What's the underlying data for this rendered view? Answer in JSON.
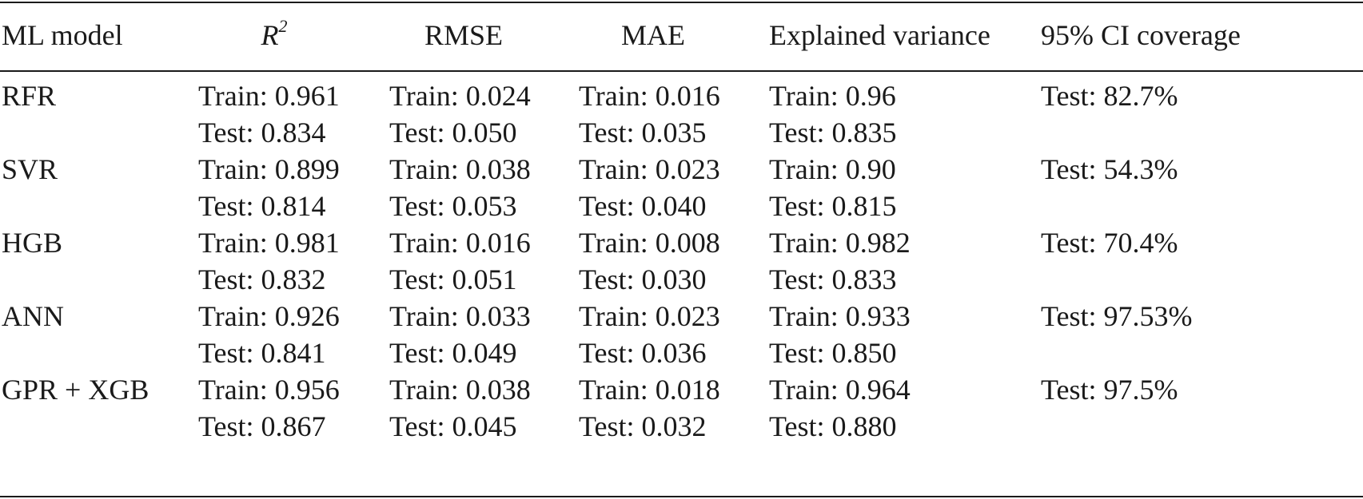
{
  "table": {
    "headers": {
      "model": "ML model",
      "r2_base": "R",
      "r2_exp": "2",
      "rmse": "RMSE",
      "mae": "MAE",
      "explained_variance": "Explained variance",
      "ci_coverage": "95% CI coverage"
    },
    "rows": [
      {
        "model": "RFR",
        "r2": {
          "train": "Train: 0.961",
          "test": "Test: 0.834"
        },
        "rmse": {
          "train": "Train: 0.024",
          "test": "Test: 0.050"
        },
        "mae": {
          "train": "Train: 0.016",
          "test": "Test: 0.035"
        },
        "ev": {
          "train": "Train: 0.96",
          "test": "Test: 0.835"
        },
        "ci": "Test: 82.7%"
      },
      {
        "model": "SVR",
        "r2": {
          "train": "Train: 0.899",
          "test": "Test: 0.814"
        },
        "rmse": {
          "train": "Train: 0.038",
          "test": "Test: 0.053"
        },
        "mae": {
          "train": "Train: 0.023",
          "test": "Test: 0.040"
        },
        "ev": {
          "train": "Train: 0.90",
          "test": "Test: 0.815"
        },
        "ci": "Test: 54.3%"
      },
      {
        "model": "HGB",
        "r2": {
          "train": "Train: 0.981",
          "test": "Test: 0.832"
        },
        "rmse": {
          "train": "Train: 0.016",
          "test": "Test: 0.051"
        },
        "mae": {
          "train": "Train: 0.008",
          "test": "Test: 0.030"
        },
        "ev": {
          "train": "Train: 0.982",
          "test": "Test: 0.833"
        },
        "ci": "Test: 70.4%"
      },
      {
        "model": "ANN",
        "r2": {
          "train": "Train: 0.926",
          "test": "Test: 0.841"
        },
        "rmse": {
          "train": "Train: 0.033",
          "test": "Test: 0.049"
        },
        "mae": {
          "train": "Train: 0.023",
          "test": "Test: 0.036"
        },
        "ev": {
          "train": "Train: 0.933",
          "test": "Test: 0.850"
        },
        "ci": "Test: 97.53%"
      },
      {
        "model": "GPR + XGB",
        "r2": {
          "train": "Train: 0.956",
          "test": "Test: 0.867"
        },
        "rmse": {
          "train": "Train: 0.038",
          "test": "Test: 0.045"
        },
        "mae": {
          "train": "Train: 0.018",
          "test": "Test: 0.032"
        },
        "ev": {
          "train": "Train: 0.964",
          "test": "Test: 0.880"
        },
        "ci": "Test: 97.5%"
      }
    ]
  }
}
